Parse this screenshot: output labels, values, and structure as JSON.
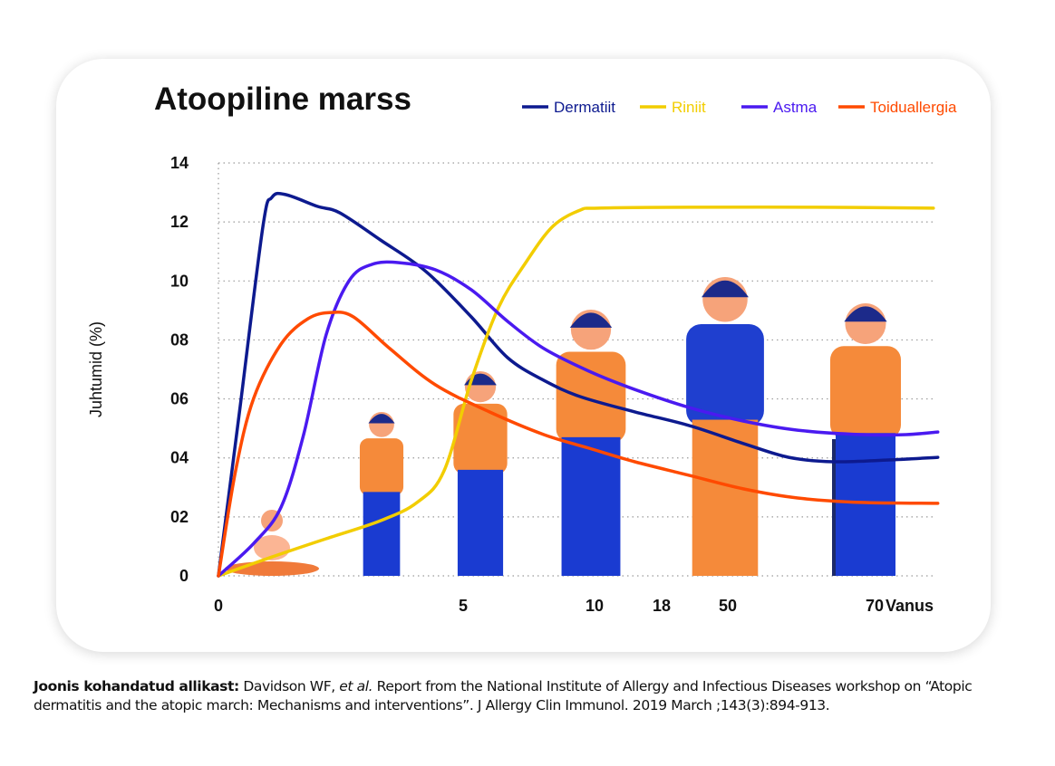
{
  "chart_data": {
    "type": "line",
    "title": "Atoopiline marss",
    "xlabel": "Vanus",
    "ylabel": "Juhtumid (%)",
    "ylim": [
      0,
      14
    ],
    "xlim": [
      0,
      79
    ],
    "x_scale": "non-linear (piecewise between ticks)",
    "grid": true,
    "legend_position": "top-right",
    "y_ticks": [
      "0",
      "02",
      "04",
      "06",
      "08",
      "10",
      "12",
      "14"
    ],
    "y_tick_values": [
      0,
      2,
      4,
      6,
      8,
      10,
      12,
      14
    ],
    "x_ticks": [
      "0",
      "5",
      "10",
      "18",
      "50",
      "70"
    ],
    "x_tick_values": [
      0,
      5,
      10,
      18,
      50,
      70
    ],
    "series": [
      {
        "name": "Dermatiit",
        "color": "#0d1a8f",
        "x": [
          0,
          0.44,
          0.91,
          1.09,
          1.37,
          2.02,
          2.48,
          3.31,
          4.24,
          5.31,
          6.69,
          8.07,
          9.45,
          14.8,
          31.2,
          52.1,
          58.3,
          64.4,
          71.9,
          78.6
        ],
        "y": [
          0,
          5.7,
          11.85,
          12.83,
          12.93,
          12.53,
          12.31,
          11.39,
          10.32,
          8.78,
          7.4,
          6.63,
          6.08,
          5.56,
          5.1,
          4.49,
          4.02,
          3.87,
          3.93,
          4.02
        ]
      },
      {
        "name": "Riniit",
        "color": "#f2cd00",
        "x": [
          0,
          1.09,
          2.2,
          3.31,
          4.06,
          4.61,
          5.31,
          6.34,
          7.38,
          8.41,
          9.45,
          10.43,
          31.2,
          62,
          78
        ],
        "y": [
          0,
          0.64,
          1.26,
          1.87,
          2.49,
          3.56,
          6.63,
          9.09,
          10.62,
          11.85,
          12.4,
          12.47,
          12.5,
          12.5,
          12.47
        ]
      },
      {
        "name": "Astma",
        "color": "#4a1af0",
        "x": [
          0,
          0.72,
          1.28,
          1.74,
          2.2,
          2.67,
          3.13,
          3.69,
          4.43,
          5.31,
          6.69,
          8.07,
          9.79,
          14.8,
          31.2,
          52.1,
          59.5,
          68.1,
          74.3,
          78.6
        ],
        "y": [
          0,
          1.1,
          2.33,
          4.79,
          8.17,
          10.01,
          10.56,
          10.62,
          10.38,
          9.7,
          8.63,
          7.71,
          6.94,
          6.32,
          5.71,
          5.25,
          4.94,
          4.79,
          4.79,
          4.88
        ]
      },
      {
        "name": "Toiduallergia",
        "color": "#ff4a00",
        "x": [
          0,
          0.35,
          0.72,
          1.28,
          1.83,
          2.3,
          2.76,
          3.5,
          4.43,
          6,
          8.07,
          9.79,
          14.8,
          31.2,
          52.1,
          59.5,
          68.1,
          78.6
        ],
        "y": [
          0,
          3.56,
          6.02,
          7.86,
          8.72,
          8.93,
          8.78,
          7.71,
          6.48,
          5.56,
          4.79,
          4.33,
          3.87,
          3.41,
          2.95,
          2.64,
          2.49,
          2.46
        ]
      }
    ]
  },
  "caption": {
    "source_label": "Joonis kohandatud allikast:",
    "authors": " Davidson WF, ",
    "et_al": "et al.",
    "text": " Report from the National Institute of Allergy and Infectious Diseases workshop on “Atopic dermatitis and the atopic march: Mechanisms and interventions”. J Allergy Clin Immunol. 2019 March ;143(3):894-913."
  }
}
